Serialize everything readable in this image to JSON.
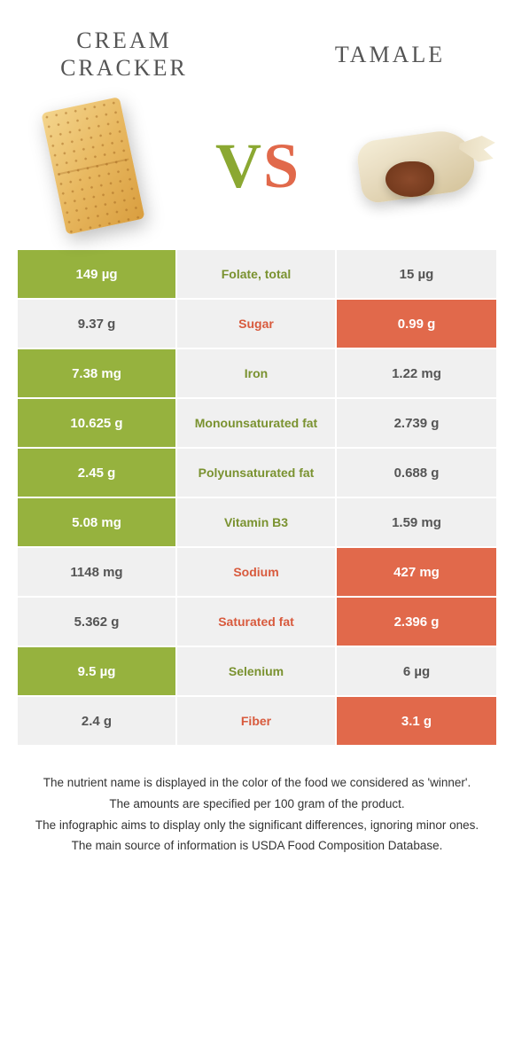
{
  "colors": {
    "green": "#96b23e",
    "orange": "#e1694b",
    "bg_gray": "#f0f0f0",
    "label_green": "#7a9230",
    "label_orange": "#d85a3d"
  },
  "foods": {
    "left": {
      "title": "Cream Cracker"
    },
    "right": {
      "title": "Tamale"
    }
  },
  "vs": {
    "v": "V",
    "s": "S"
  },
  "rows": [
    {
      "left": "149 µg",
      "label": "Folate, total",
      "right": "15 µg",
      "winner": "left"
    },
    {
      "left": "9.37 g",
      "label": "Sugar",
      "right": "0.99 g",
      "winner": "right"
    },
    {
      "left": "7.38 mg",
      "label": "Iron",
      "right": "1.22 mg",
      "winner": "left"
    },
    {
      "left": "10.625 g",
      "label": "Monounsaturated fat",
      "right": "2.739 g",
      "winner": "left"
    },
    {
      "left": "2.45 g",
      "label": "Polyunsaturated fat",
      "right": "0.688 g",
      "winner": "left"
    },
    {
      "left": "5.08 mg",
      "label": "Vitamin B3",
      "right": "1.59 mg",
      "winner": "left"
    },
    {
      "left": "1148 mg",
      "label": "Sodium",
      "right": "427 mg",
      "winner": "right"
    },
    {
      "left": "5.362 g",
      "label": "Saturated fat",
      "right": "2.396 g",
      "winner": "right"
    },
    {
      "left": "9.5 µg",
      "label": "Selenium",
      "right": "6 µg",
      "winner": "left"
    },
    {
      "left": "2.4 g",
      "label": "Fiber",
      "right": "3.1 g",
      "winner": "right"
    }
  ],
  "footer": [
    "The nutrient name is displayed in the color of the food we considered as 'winner'.",
    "The amounts are specified per 100 gram of the product.",
    "The infographic aims to display only the significant differences, ignoring minor ones.",
    "The main source of information is USDA Food Composition Database."
  ]
}
